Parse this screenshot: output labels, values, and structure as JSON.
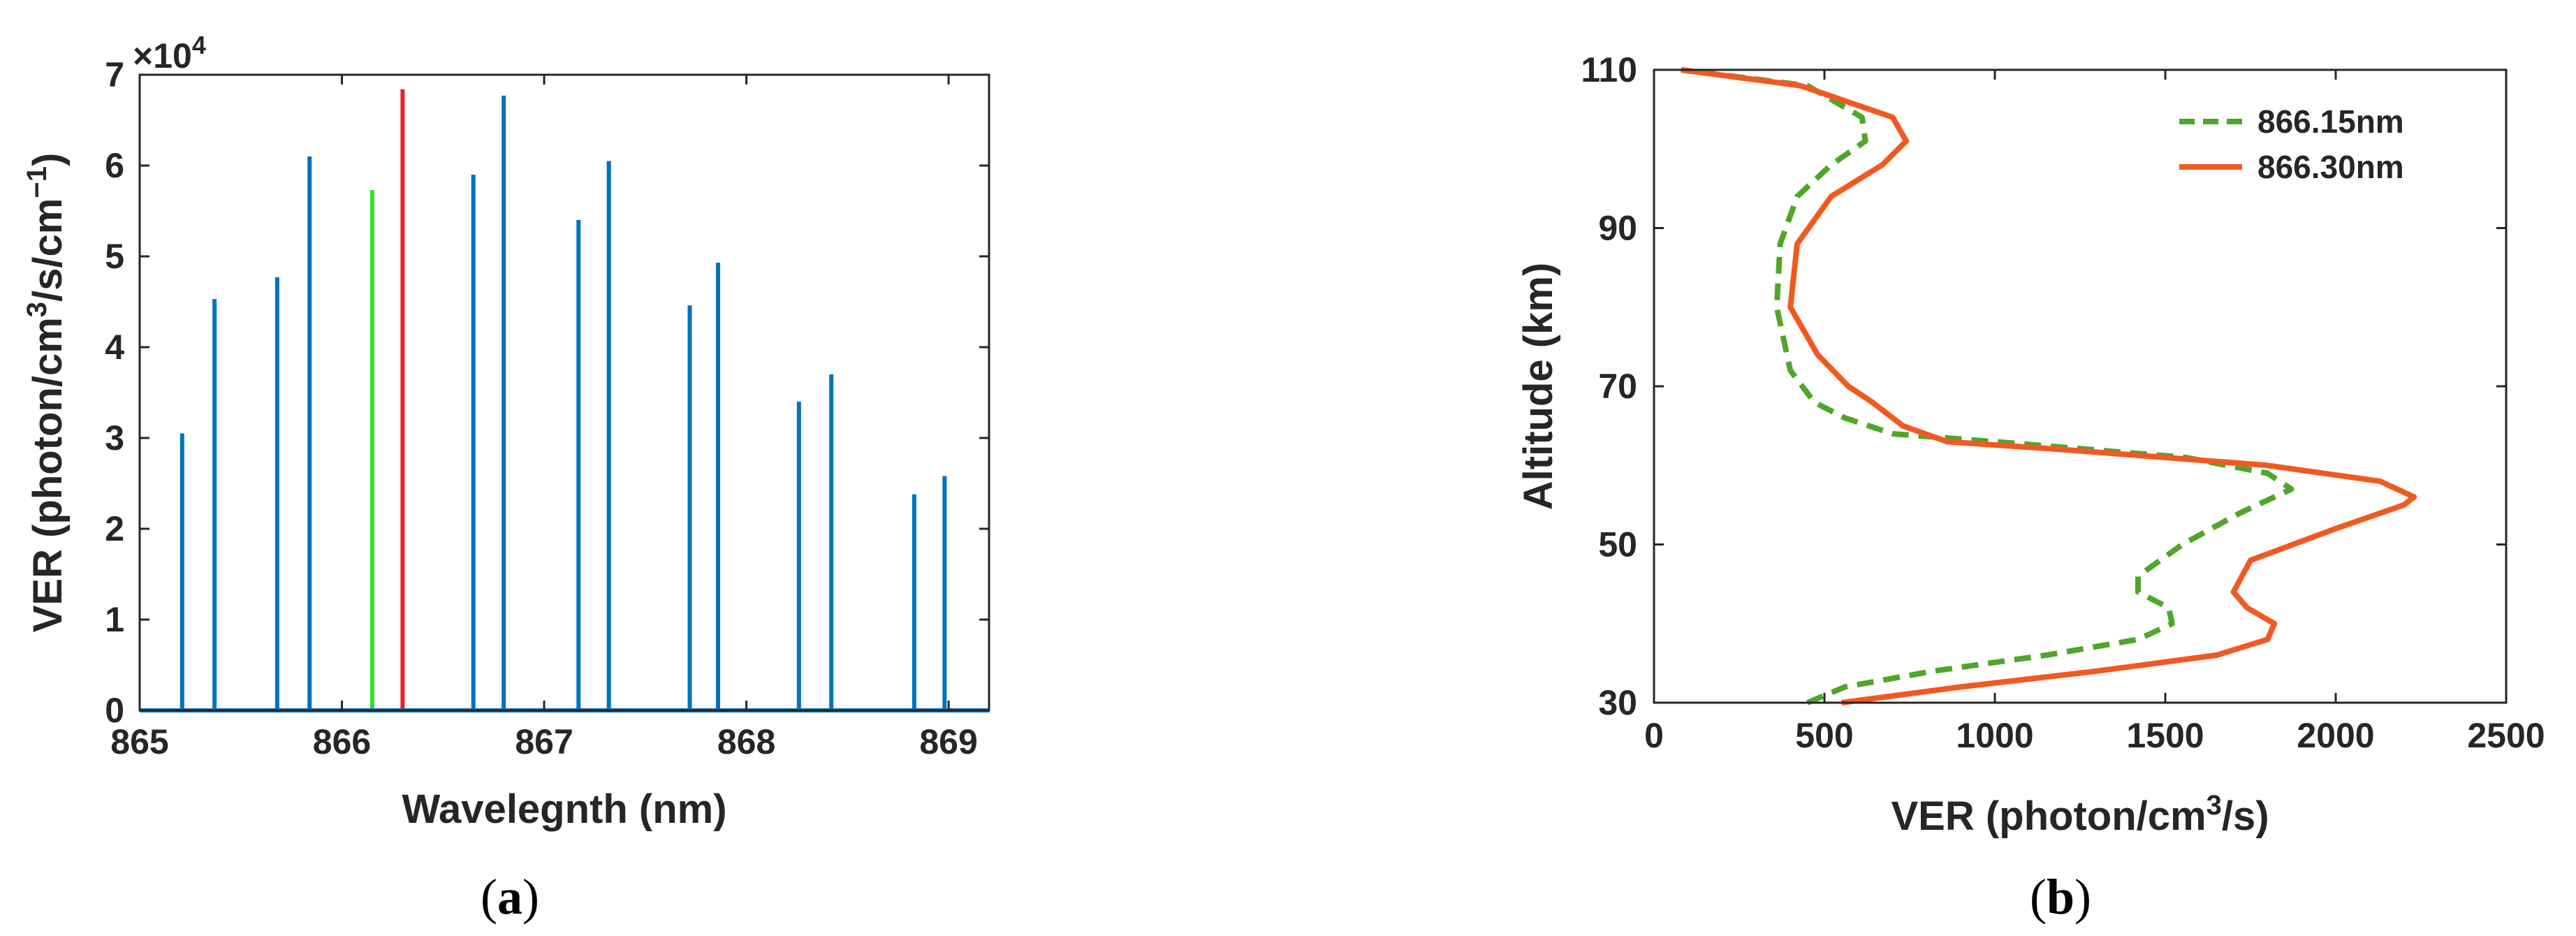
{
  "chart_data": [
    {
      "type": "bar",
      "panel": "a",
      "caption_open": "(",
      "caption_letter": "a",
      "caption_close": ")",
      "xlabel": "Wavelegnth (nm)",
      "ylabel_pre": "VER (photon/cm",
      "ylabel_sup1": "3",
      "ylabel_mid": "/s/cm",
      "ylabel_sup2": "−1",
      "ylabel_post": ")",
      "exponent_base": "×10",
      "exponent_power": "4",
      "xlim": [
        865,
        869.2
      ],
      "ylim": [
        0,
        7
      ],
      "xticks": [
        "865",
        "866",
        "867",
        "868",
        "869"
      ],
      "yticks": [
        "0",
        "1",
        "2",
        "3",
        "4",
        "5",
        "6",
        "7"
      ],
      "grid": false,
      "colors": {
        "default": "#0072BD",
        "green": "#33DD33",
        "red": "#E8262B",
        "axis": "#262626"
      },
      "lines": [
        {
          "x": 865.21,
          "value": 3.05,
          "color": "default"
        },
        {
          "x": 865.37,
          "value": 4.53,
          "color": "default"
        },
        {
          "x": 865.68,
          "value": 4.77,
          "color": "default"
        },
        {
          "x": 865.84,
          "value": 6.1,
          "color": "default"
        },
        {
          "x": 866.15,
          "value": 5.73,
          "color": "green"
        },
        {
          "x": 866.3,
          "value": 6.84,
          "color": "red"
        },
        {
          "x": 866.65,
          "value": 5.9,
          "color": "default"
        },
        {
          "x": 866.8,
          "value": 6.77,
          "color": "default"
        },
        {
          "x": 867.17,
          "value": 5.4,
          "color": "default"
        },
        {
          "x": 867.32,
          "value": 6.05,
          "color": "default"
        },
        {
          "x": 867.72,
          "value": 4.46,
          "color": "default"
        },
        {
          "x": 867.86,
          "value": 4.93,
          "color": "default"
        },
        {
          "x": 868.26,
          "value": 3.4,
          "color": "default"
        },
        {
          "x": 868.42,
          "value": 3.7,
          "color": "default"
        },
        {
          "x": 868.83,
          "value": 2.38,
          "color": "default"
        },
        {
          "x": 868.98,
          "value": 2.58,
          "color": "default"
        }
      ]
    },
    {
      "type": "line",
      "panel": "b",
      "caption_open": "(",
      "caption_letter": "b",
      "caption_close": ")",
      "xlabel_pre": "VER (photon/cm",
      "xlabel_sup": "3",
      "xlabel_post": "/s)",
      "ylabel": "Altitude (km)",
      "xlim": [
        0,
        2500
      ],
      "ylim": [
        30,
        110
      ],
      "xticks": [
        "0",
        "500",
        "1000",
        "1500",
        "2000",
        "2500"
      ],
      "yticks": [
        "30",
        "50",
        "70",
        "90",
        "110"
      ],
      "grid": false,
      "legend_position": "top-right",
      "series": [
        {
          "name": "866.15nm",
          "color": "#4FA62A",
          "dash": true,
          "x": [
            450,
            560,
            820,
            1150,
            1420,
            1520,
            1510,
            1420,
            1420,
            1550,
            1720,
            1870,
            1800,
            1560,
            1000,
            700,
            560,
            470,
            400,
            360,
            370,
            420,
            520,
            620,
            610,
            450,
            80
          ],
          "y": [
            30,
            32,
            34,
            36,
            38,
            40,
            42,
            44,
            46,
            50,
            54,
            57,
            59,
            61,
            63,
            64,
            66,
            68,
            72,
            80,
            88,
            94,
            98,
            101,
            104,
            108,
            110
          ]
        },
        {
          "name": "866.30nm",
          "color": "#F05A22",
          "dash": false,
          "x": [
            550,
            900,
            1300,
            1650,
            1800,
            1820,
            1740,
            1700,
            1750,
            2000,
            2200,
            2230,
            2130,
            1800,
            1200,
            860,
            730,
            640,
            570,
            480,
            400,
            420,
            520,
            670,
            740,
            700,
            430,
            80
          ],
          "y": [
            30,
            32,
            34,
            36,
            38,
            40,
            42,
            44,
            48,
            52,
            55,
            56,
            58,
            60,
            62,
            63,
            65,
            68,
            70,
            74,
            80,
            88,
            94,
            98,
            101,
            104,
            108,
            110
          ]
        }
      ]
    }
  ]
}
